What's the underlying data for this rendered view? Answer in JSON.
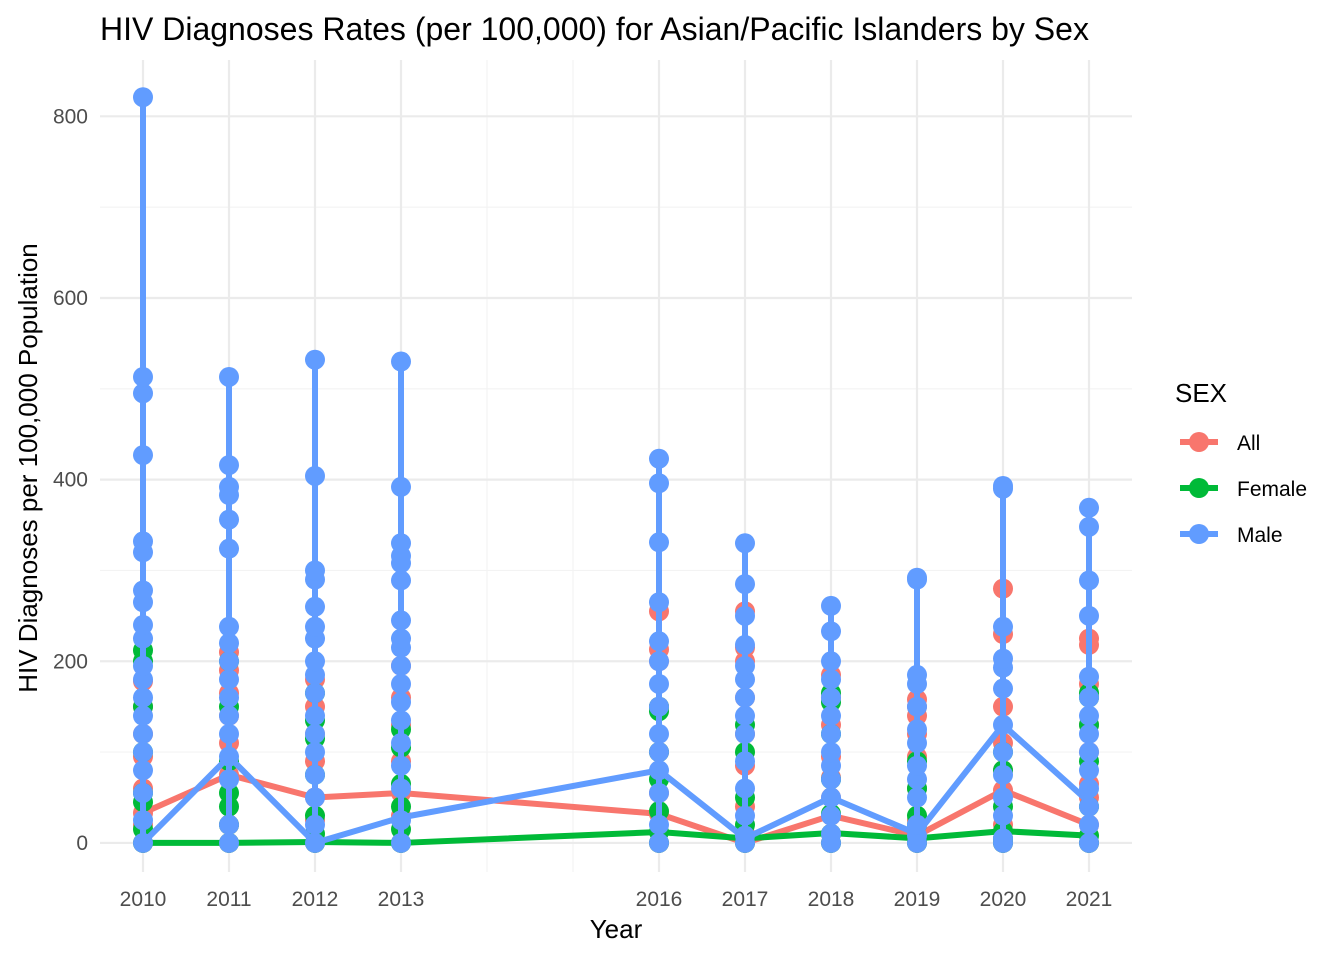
{
  "chart_data": {
    "type": "line",
    "title": "HIV Diagnoses Rates (per 100,000) for Asian/Pacific Islanders by Sex",
    "xlabel": "Year",
    "ylabel": "HIV Diagnoses per 100,000 Population",
    "xlim": [
      2009.5,
      2021.5
    ],
    "ylim": [
      -32,
      862
    ],
    "x_ticks": [
      2010,
      2011,
      2012,
      2013,
      2016,
      2017,
      2018,
      2019,
      2020,
      2021
    ],
    "y_ticks": [
      0,
      200,
      400,
      600,
      800
    ],
    "grid": true,
    "legend": {
      "title": "SEX",
      "position": "right"
    },
    "series": [
      {
        "name": "All",
        "color": "#F8766D",
        "x": [
          2010,
          2011,
          2012,
          2013,
          2016,
          2017,
          2018,
          2019,
          2020,
          2021
        ],
        "points": [
          [
            0,
            20,
            33,
            60,
            95,
            120,
            150,
            178
          ],
          [
            0,
            20,
            75,
            110,
            140,
            165,
            190,
            210
          ],
          [
            0,
            25,
            50,
            90,
            120,
            150,
            180
          ],
          [
            0,
            30,
            55,
            90,
            130,
            160,
            195
          ],
          [
            0,
            32,
            55,
            100,
            150,
            200,
            213,
            255
          ],
          [
            0,
            10,
            40,
            85,
            120,
            160,
            200,
            215,
            255
          ],
          [
            0,
            10,
            30,
            50,
            72,
            95,
            130,
            160,
            185
          ],
          [
            0,
            8,
            25,
            60,
            95,
            120,
            140,
            150,
            158
          ],
          [
            0,
            20,
            58,
            80,
            110,
            150,
            230,
            280
          ],
          [
            0,
            20,
            50,
            65,
            100,
            130,
            175,
            218,
            225
          ]
        ],
        "trend": [
          33,
          75,
          50,
          55,
          32,
          0,
          30,
          8,
          58,
          20
        ]
      },
      {
        "name": "Female",
        "color": "#00BA38",
        "x": [
          2010,
          2011,
          2012,
          2013,
          2016,
          2017,
          2018,
          2019,
          2020,
          2021
        ],
        "points": [
          [
            0,
            15,
            45,
            55,
            100,
            150,
            200,
            212
          ],
          [
            0,
            20,
            40,
            55,
            90,
            150,
            200
          ],
          [
            0,
            10,
            30,
            75,
            115,
            135,
            165
          ],
          [
            0,
            15,
            40,
            65,
            105,
            125
          ],
          [
            0,
            12,
            35,
            70,
            100,
            145,
            150
          ],
          [
            0,
            5,
            20,
            50,
            100,
            130
          ],
          [
            0,
            10,
            32,
            70,
            120,
            155,
            165
          ],
          [
            0,
            5,
            20,
            30,
            60,
            90
          ],
          [
            0,
            5,
            13,
            40,
            80,
            100
          ],
          [
            0,
            8,
            40,
            90,
            130,
            160,
            165
          ]
        ],
        "trend": [
          0,
          0,
          1,
          0,
          12,
          5,
          11,
          5,
          13,
          8
        ]
      },
      {
        "name": "Male",
        "color": "#619CFF",
        "x": [
          2010,
          2011,
          2012,
          2013,
          2016,
          2017,
          2018,
          2019,
          2020,
          2021
        ],
        "points": [
          [
            0,
            25,
            55,
            80,
            100,
            120,
            140,
            160,
            180,
            195,
            225,
            240,
            265,
            278,
            320,
            332,
            427,
            495,
            513,
            821
          ],
          [
            0,
            20,
            70,
            95,
            120,
            140,
            160,
            180,
            200,
            220,
            238,
            324,
            356,
            383,
            392,
            416,
            513
          ],
          [
            0,
            20,
            50,
            75,
            100,
            120,
            140,
            165,
            185,
            200,
            225,
            238,
            260,
            290,
            300,
            404,
            532
          ],
          [
            0,
            25,
            60,
            85,
            110,
            135,
            155,
            175,
            195,
            215,
            225,
            245,
            289,
            308,
            316,
            330,
            392,
            530
          ],
          [
            0,
            20,
            55,
            80,
            100,
            120,
            150,
            175,
            200,
            222,
            265,
            331,
            396,
            423
          ],
          [
            0,
            8,
            30,
            60,
            90,
            120,
            140,
            160,
            180,
            195,
            218,
            250,
            285,
            330
          ],
          [
            0,
            10,
            30,
            50,
            70,
            85,
            100,
            120,
            140,
            160,
            180,
            200,
            233,
            261
          ],
          [
            0,
            8,
            20,
            50,
            70,
            85,
            110,
            125,
            150,
            175,
            185,
            290,
            292
          ],
          [
            0,
            5,
            30,
            50,
            75,
            100,
            130,
            170,
            193,
            203,
            238,
            390,
            393
          ],
          [
            0,
            20,
            40,
            60,
            80,
            100,
            120,
            140,
            160,
            183,
            250,
            289,
            348,
            369
          ]
        ],
        "trend": [
          0,
          95,
          0,
          28,
          80,
          5,
          50,
          10,
          130,
          45
        ]
      }
    ]
  }
}
